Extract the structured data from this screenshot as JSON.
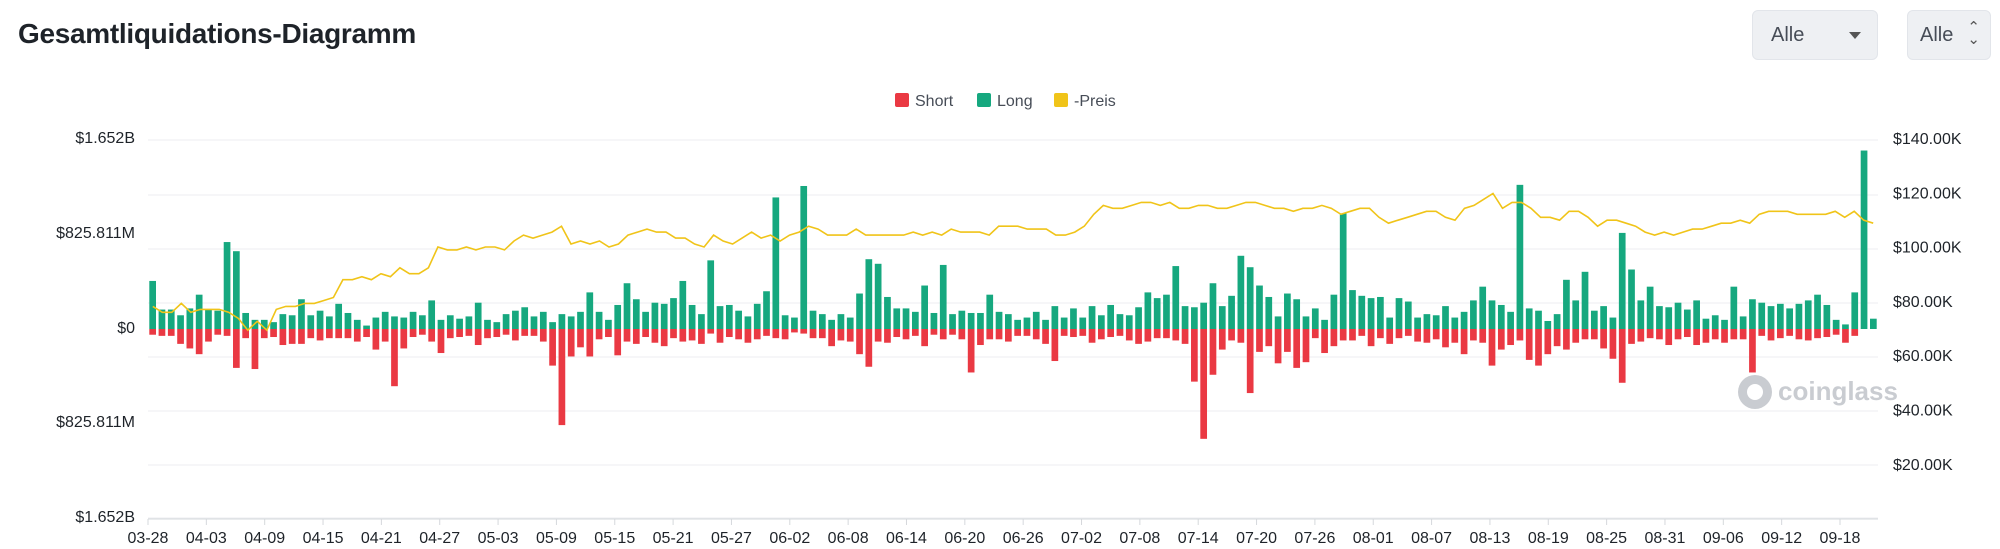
{
  "header": {
    "title": "Gesamtliquidations-Diagramm"
  },
  "filters": {
    "select1": "Alle",
    "select2": "Alle"
  },
  "colors": {
    "short": "#ea3943",
    "long": "#16a87f",
    "price": "#f0c419"
  },
  "chart_data": {
    "type": "bar",
    "legend": [
      "Short",
      "Long",
      "-Preis"
    ],
    "left_axis_ticks": [
      "$1.652B",
      "$825.811M",
      "$0",
      "$825.811M",
      "$1.652B"
    ],
    "right_axis_ticks": [
      "$140.00K",
      "$120.00K",
      "$100.00K",
      "$80.00K",
      "$60.00K",
      "$40.00K",
      "$20.00K"
    ],
    "x_labels": [
      "03-28",
      "04-03",
      "04-09",
      "04-15",
      "04-21",
      "04-27",
      "05-03",
      "05-09",
      "05-15",
      "05-21",
      "05-27",
      "06-02",
      "06-08",
      "06-14",
      "06-20",
      "06-26",
      "07-02",
      "07-08",
      "07-14",
      "07-20",
      "07-26",
      "08-01",
      "08-07",
      "08-13",
      "08-19",
      "08-25",
      "08-31",
      "09-06",
      "09-12",
      "09-18"
    ],
    "ylim_usd_millions": [
      -1652,
      1652
    ],
    "price_ylim_usd_k": [
      0,
      140
    ],
    "series": [
      {
        "name": "Long",
        "unit": "USD millions",
        "values": [
          420,
          170,
          170,
          120,
          180,
          300,
          170,
          160,
          760,
          680,
          140,
          80,
          80,
          60,
          130,
          120,
          260,
          120,
          160,
          110,
          220,
          140,
          80,
          30,
          100,
          150,
          110,
          100,
          150,
          120,
          250,
          80,
          120,
          90,
          110,
          230,
          80,
          60,
          130,
          160,
          190,
          110,
          150,
          60,
          130,
          110,
          150,
          320,
          150,
          80,
          210,
          400,
          260,
          150,
          230,
          220,
          270,
          420,
          210,
          130,
          600,
          200,
          210,
          160,
          110,
          220,
          330,
          1150,
          120,
          100,
          1250,
          160,
          130,
          80,
          130,
          100,
          310,
          610,
          570,
          280,
          180,
          180,
          150,
          380,
          140,
          560,
          130,
          160,
          140,
          140,
          300,
          150,
          130,
          80,
          100,
          150,
          80,
          200,
          100,
          180,
          100,
          200,
          120,
          210,
          130,
          120,
          190,
          320,
          270,
          300,
          550,
          200,
          190,
          230,
          400,
          200,
          290,
          640,
          540,
          380,
          280,
          110,
          310,
          260,
          110,
          180,
          80,
          300,
          1010,
          340,
          290,
          270,
          280,
          100,
          270,
          240,
          100,
          130,
          120,
          200,
          100,
          150,
          250,
          370,
          250,
          210,
          150,
          1260,
          180,
          160,
          70,
          130,
          430,
          250,
          500,
          160,
          200,
          100,
          840,
          520,
          250,
          370,
          200,
          190,
          230,
          170,
          250,
          90,
          120,
          80,
          370,
          110,
          260,
          230,
          200,
          220,
          180,
          220,
          250,
          300,
          210,
          80,
          40,
          320,
          1560,
          90
        ],
        "sample_days": "2025-03-28 → 2025-09-23 (approx. one bar per day)"
      },
      {
        "name": "Short",
        "unit": "USD millions",
        "values": [
          -50,
          -60,
          -60,
          -130,
          -170,
          -220,
          -110,
          -50,
          -60,
          -340,
          -80,
          -350,
          -80,
          -70,
          -140,
          -130,
          -130,
          -80,
          -100,
          -80,
          -80,
          -80,
          -110,
          -70,
          -180,
          -110,
          -500,
          -170,
          -70,
          -50,
          -110,
          -210,
          -80,
          -70,
          -60,
          -140,
          -80,
          -70,
          -50,
          -100,
          -60,
          -60,
          -110,
          -320,
          -840,
          -240,
          -160,
          -240,
          -90,
          -70,
          -230,
          -110,
          -130,
          -70,
          -120,
          -150,
          -80,
          -110,
          -100,
          -130,
          -40,
          -120,
          -70,
          -90,
          -120,
          -90,
          -60,
          -80,
          -90,
          -30,
          -40,
          -80,
          -80,
          -150,
          -100,
          -110,
          -220,
          -330,
          -110,
          -120,
          -70,
          -90,
          -60,
          -150,
          -50,
          -90,
          -50,
          -90,
          -380,
          -140,
          -90,
          -90,
          -110,
          -60,
          -60,
          -90,
          -130,
          -280,
          -60,
          -70,
          -60,
          -120,
          -90,
          -70,
          -60,
          -100,
          -130,
          -110,
          -80,
          -80,
          -100,
          -130,
          -460,
          -960,
          -400,
          -180,
          -100,
          -120,
          -560,
          -200,
          -150,
          -300,
          -200,
          -340,
          -290,
          -80,
          -210,
          -150,
          -100,
          -100,
          -60,
          -150,
          -80,
          -130,
          -80,
          -60,
          -110,
          -120,
          -90,
          -160,
          -120,
          -220,
          -100,
          -120,
          -320,
          -180,
          -140,
          -100,
          -270,
          -320,
          -220,
          -150,
          -180,
          -120,
          -90,
          -90,
          -170,
          -260,
          -470,
          -130,
          -110,
          -80,
          -90,
          -140,
          -90,
          -70,
          -140,
          -120,
          -90,
          -120,
          -90,
          -90,
          -380,
          -60,
          -100,
          -80,
          -60,
          -90,
          -100,
          -80,
          -70,
          -50,
          -120,
          -60
        ],
        "sample_days": "same"
      },
      {
        "name": "-Preis",
        "unit": "USD thousands",
        "values": [
          84,
          82,
          82,
          85,
          82,
          83,
          83,
          83,
          82,
          80,
          76,
          79,
          76,
          83,
          84,
          84,
          85,
          85,
          86,
          87,
          93,
          93,
          94,
          93,
          95,
          94,
          97,
          95,
          95,
          97,
          104,
          103,
          103,
          104,
          103,
          104,
          104,
          103,
          106,
          108,
          107,
          108,
          109,
          111,
          105,
          106,
          105,
          106,
          104,
          105,
          108,
          109,
          110,
          109,
          109,
          107,
          107,
          105,
          104,
          108,
          106,
          105,
          107,
          109,
          107,
          108,
          106,
          108,
          109,
          111,
          110,
          108,
          108,
          108,
          110,
          108,
          108,
          108,
          108,
          108,
          109,
          108,
          109,
          108,
          110,
          109,
          109,
          109,
          108,
          111,
          111,
          111,
          110,
          110,
          110,
          108,
          108,
          109,
          111,
          115,
          118,
          117,
          117,
          118,
          119,
          119,
          118,
          119,
          117,
          117,
          118,
          118,
          117,
          117,
          118,
          119,
          119,
          118,
          117,
          117,
          116,
          117,
          117,
          118,
          117,
          115,
          116,
          117,
          117,
          114,
          112,
          113,
          114,
          115,
          116,
          116,
          114,
          113,
          117,
          118,
          120,
          122,
          117,
          119,
          119,
          117,
          114,
          114,
          113,
          116,
          116,
          114,
          111,
          113,
          113,
          112,
          111,
          109,
          108,
          109,
          108,
          109,
          110,
          110,
          111,
          112,
          112,
          113,
          112,
          115,
          116,
          116,
          116,
          115,
          115,
          115,
          115,
          116,
          114,
          116,
          113,
          112
        ],
        "sample_days": "same"
      }
    ]
  },
  "watermark": {
    "text": "coinglass"
  }
}
